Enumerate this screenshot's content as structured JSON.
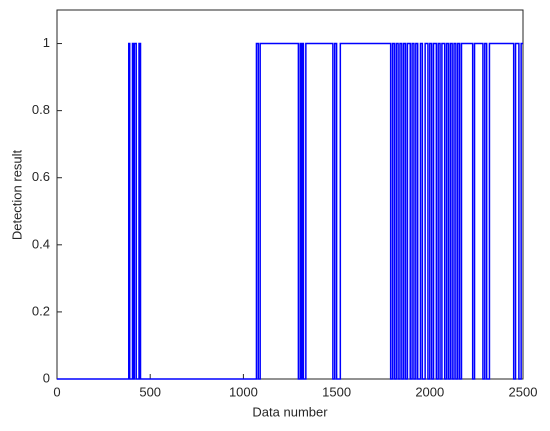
{
  "chart_data": {
    "type": "line",
    "x_label": "Data number",
    "y_label": "Detection result",
    "xlim": [
      0,
      2500
    ],
    "xticks": [
      0,
      500,
      1000,
      1500,
      2000,
      2500
    ],
    "ylim": [
      0,
      1.1
    ],
    "yticks": [
      0,
      0.2,
      0.4,
      0.6,
      0.8,
      1
    ],
    "series": [
      {
        "color": "#0000ff",
        "x": [
          0,
          385,
          385,
          390,
          390,
          405,
          405,
          410,
          410,
          415,
          415,
          425,
          425,
          440,
          440,
          448,
          448,
          1070,
          1070,
          1080,
          1080,
          1090,
          1090,
          1295,
          1295,
          1305,
          1305,
          1310,
          1310,
          1318,
          1318,
          1322,
          1322,
          1335,
          1335,
          1480,
          1480,
          1490,
          1490,
          1500,
          1500,
          1520,
          1520,
          1790,
          1790,
          1800,
          1800,
          1810,
          1810,
          1820,
          1820,
          1830,
          1830,
          1840,
          1840,
          1850,
          1850,
          1860,
          1860,
          1870,
          1870,
          1880,
          1880,
          1895,
          1895,
          1905,
          1905,
          1915,
          1915,
          1925,
          1925,
          1935,
          1935,
          1950,
          1950,
          1960,
          1960,
          1975,
          1975,
          1990,
          1990,
          2000,
          2000,
          2010,
          2010,
          2020,
          2020,
          2035,
          2035,
          2045,
          2045,
          2055,
          2055,
          2065,
          2065,
          2080,
          2080,
          2090,
          2090,
          2100,
          2100,
          2110,
          2110,
          2120,
          2120,
          2130,
          2130,
          2140,
          2140,
          2150,
          2150,
          2160,
          2160,
          2170,
          2170,
          2230,
          2230,
          2240,
          2240,
          2285,
          2285,
          2295,
          2295,
          2305,
          2305,
          2320,
          2320,
          2450,
          2450,
          2460,
          2460,
          2478,
          2478,
          2490,
          2490,
          2500
        ],
        "values": [
          0,
          0,
          1,
          1,
          0,
          0,
          1,
          1,
          0,
          0,
          1,
          1,
          0,
          0,
          1,
          1,
          0,
          0,
          1,
          1,
          0,
          0,
          1,
          1,
          0,
          0,
          1,
          1,
          0,
          0,
          1,
          1,
          0,
          0,
          1,
          1,
          0,
          0,
          1,
          1,
          0,
          0,
          1,
          1,
          0,
          0,
          1,
          1,
          0,
          0,
          1,
          1,
          0,
          0,
          1,
          1,
          0,
          0,
          1,
          1,
          0,
          0,
          1,
          1,
          0,
          0,
          1,
          1,
          0,
          0,
          1,
          1,
          0,
          0,
          1,
          1,
          0,
          0,
          1,
          1,
          0,
          0,
          1,
          1,
          0,
          0,
          1,
          1,
          0,
          0,
          1,
          1,
          0,
          0,
          1,
          1,
          0,
          0,
          1,
          1,
          0,
          0,
          1,
          1,
          0,
          0,
          1,
          1,
          0,
          0,
          1,
          1,
          0,
          0,
          1,
          1,
          0,
          0,
          1,
          1,
          0,
          0,
          1,
          1,
          0,
          0,
          1,
          1,
          0,
          0,
          1,
          1,
          0,
          0,
          1,
          1
        ]
      }
    ]
  }
}
